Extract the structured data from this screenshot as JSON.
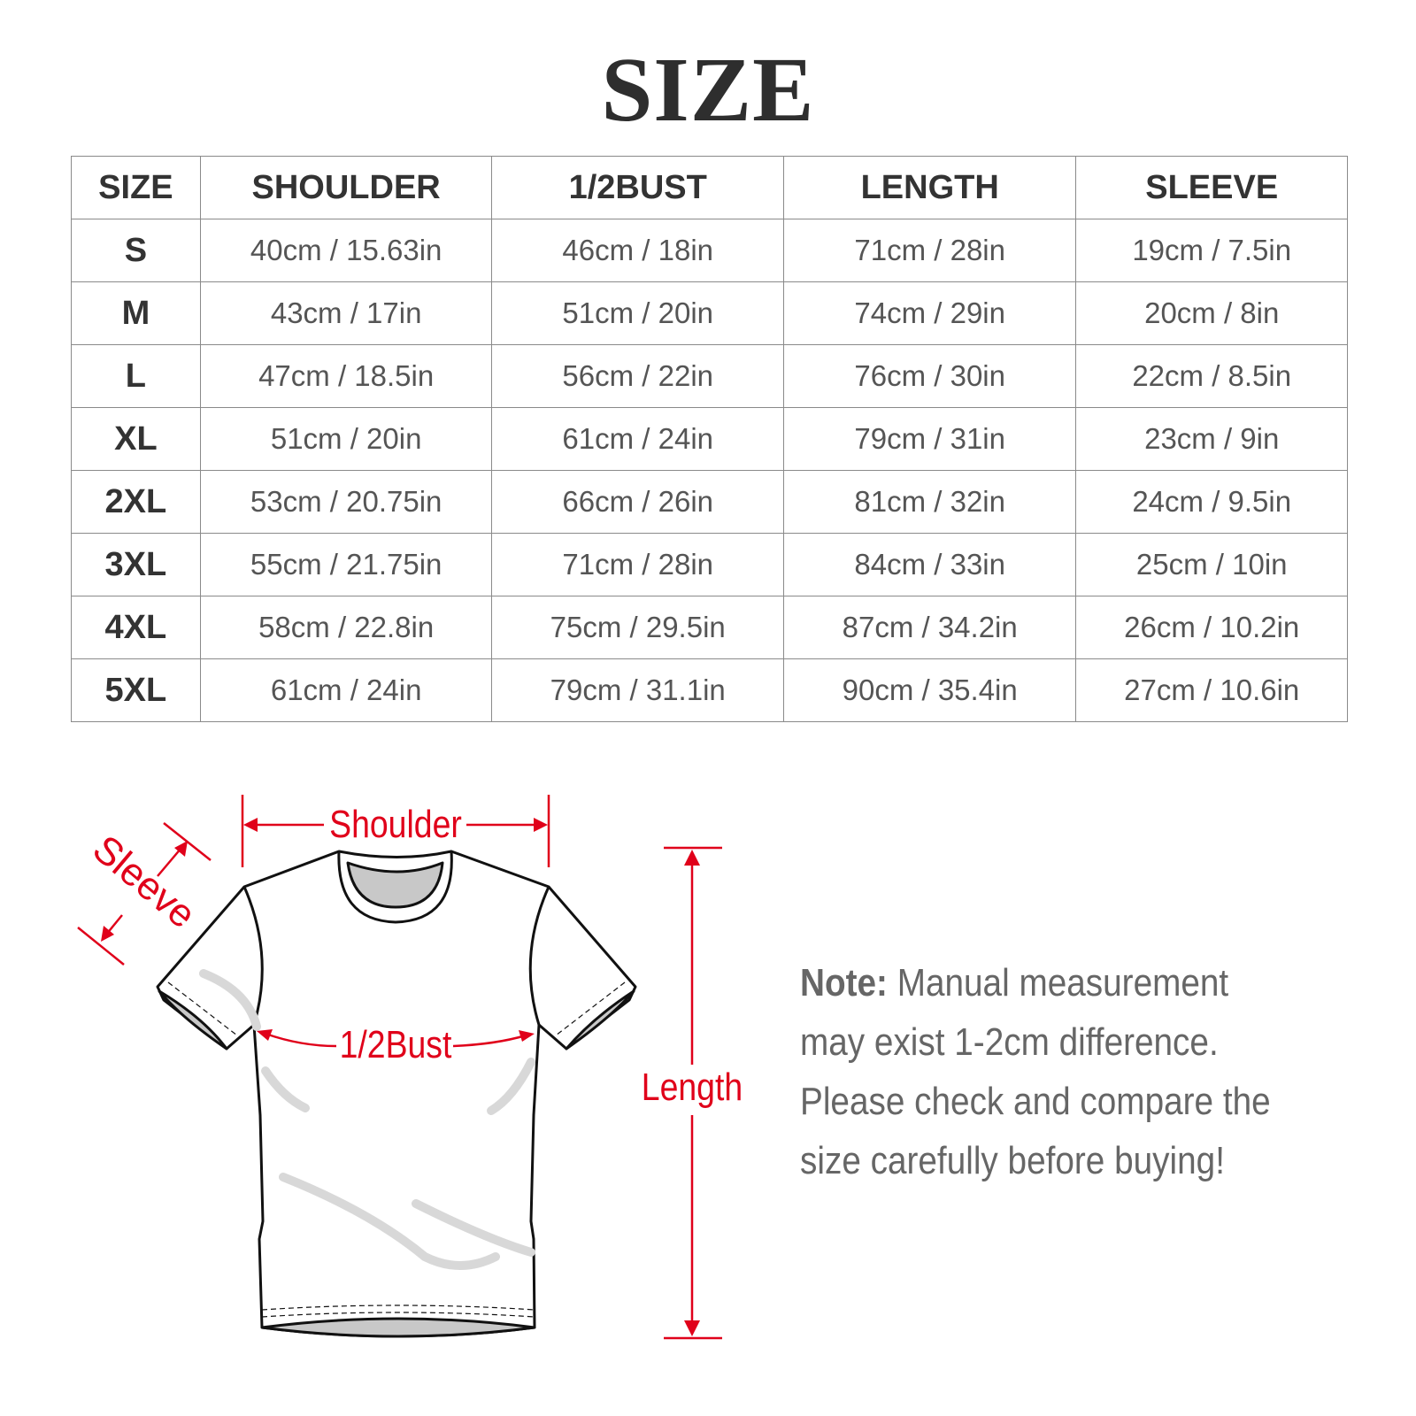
{
  "title": "SIZE",
  "table": {
    "headers": [
      "SIZE",
      "SHOULDER",
      "1/2BUST",
      "LENGTH",
      "SLEEVE"
    ],
    "rows": [
      [
        "S",
        "40cm / 15.63in",
        "46cm / 18in",
        "71cm / 28in",
        "19cm / 7.5in"
      ],
      [
        "M",
        "43cm / 17in",
        "51cm / 20in",
        "74cm / 29in",
        "20cm / 8in"
      ],
      [
        "L",
        "47cm / 18.5in",
        "56cm / 22in",
        "76cm / 30in",
        "22cm / 8.5in"
      ],
      [
        "XL",
        "51cm / 20in",
        "61cm / 24in",
        "79cm / 31in",
        "23cm / 9in"
      ],
      [
        "2XL",
        "53cm / 20.75in",
        "66cm / 26in",
        "81cm / 32in",
        "24cm / 9.5in"
      ],
      [
        "3XL",
        "55cm / 21.75in",
        "71cm / 28in",
        "84cm / 33in",
        "25cm / 10in"
      ],
      [
        "4XL",
        "58cm / 22.8in",
        "75cm / 29.5in",
        "87cm / 34.2in",
        "26cm / 10.2in"
      ],
      [
        "5XL",
        "61cm / 24in",
        "79cm / 31.1in",
        "90cm / 35.4in",
        "27cm / 10.6in"
      ]
    ]
  },
  "diagram": {
    "shoulder": "Shoulder",
    "sleeve": "Sleeve",
    "bust": "1/2Bust",
    "length": "Length",
    "accent_color": "#e0001a"
  },
  "note": {
    "label": "Note:",
    "text": " Manual measurement may exist 1-2cm difference. Please check and compare the size carefully before buying!"
  }
}
